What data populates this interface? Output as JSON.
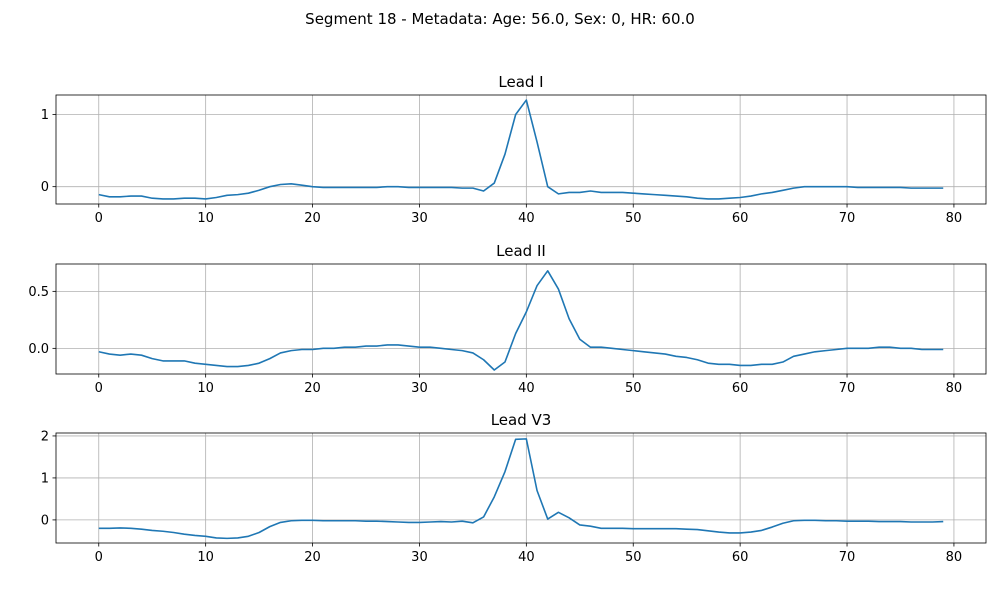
{
  "figure_title": "Segment 18 - Metadata: Age: 56.0, Sex: 0, HR: 60.0",
  "colors": {
    "line": "#1f77b4",
    "grid": "#b0b0b0",
    "axes": "#000000"
  },
  "chart_data": [
    {
      "type": "line",
      "title": "Lead I",
      "xlabel": "",
      "ylabel": "",
      "grid": true,
      "xlim": [
        -4,
        83
      ],
      "ylim": [
        -0.24,
        1.27
      ],
      "xticks": [
        "0",
        "10",
        "20",
        "30",
        "40",
        "50",
        "60",
        "70",
        "80"
      ],
      "yticks": [
        "0",
        "1"
      ],
      "series": [
        {
          "values": [
            -0.11,
            -0.14,
            -0.14,
            -0.13,
            -0.13,
            -0.16,
            -0.17,
            -0.17,
            -0.16,
            -0.16,
            -0.17,
            -0.15,
            -0.12,
            -0.11,
            -0.09,
            -0.05,
            0.0,
            0.03,
            0.04,
            0.02,
            0.0,
            -0.01,
            -0.01,
            -0.01,
            -0.01,
            -0.01,
            -0.01,
            0.0,
            0.0,
            -0.01,
            -0.01,
            -0.01,
            -0.01,
            -0.01,
            -0.02,
            -0.02,
            -0.06,
            0.05,
            0.45,
            1.0,
            1.2,
            0.62,
            0.0,
            -0.1,
            -0.08,
            -0.08,
            -0.06,
            -0.08,
            -0.08,
            -0.08,
            -0.09,
            -0.1,
            -0.11,
            -0.12,
            -0.13,
            -0.14,
            -0.16,
            -0.17,
            -0.17,
            -0.16,
            -0.15,
            -0.13,
            -0.1,
            -0.08,
            -0.05,
            -0.02,
            0.0,
            0.0,
            0.0,
            0.0,
            0.0,
            -0.01,
            -0.01,
            -0.01,
            -0.01,
            -0.01,
            -0.02,
            -0.02,
            -0.02,
            -0.02
          ]
        }
      ]
    },
    {
      "type": "line",
      "title": "Lead II",
      "xlabel": "",
      "ylabel": "",
      "grid": true,
      "xlim": [
        -4,
        83
      ],
      "ylim": [
        -0.225,
        0.74
      ],
      "xticks": [
        "0",
        "10",
        "20",
        "30",
        "40",
        "50",
        "60",
        "70",
        "80"
      ],
      "yticks": [
        "0.0",
        "0.5"
      ],
      "series": [
        {
          "values": [
            -0.03,
            -0.05,
            -0.06,
            -0.05,
            -0.06,
            -0.09,
            -0.11,
            -0.11,
            -0.11,
            -0.13,
            -0.14,
            -0.15,
            -0.16,
            -0.16,
            -0.15,
            -0.13,
            -0.09,
            -0.04,
            -0.02,
            -0.01,
            -0.01,
            0.0,
            0.0,
            0.01,
            0.01,
            0.02,
            0.02,
            0.03,
            0.03,
            0.02,
            0.01,
            0.01,
            0.0,
            -0.01,
            -0.02,
            -0.04,
            -0.1,
            -0.19,
            -0.12,
            0.13,
            0.32,
            0.55,
            0.68,
            0.52,
            0.26,
            0.08,
            0.01,
            0.01,
            0.0,
            -0.01,
            -0.02,
            -0.03,
            -0.04,
            -0.05,
            -0.07,
            -0.08,
            -0.1,
            -0.13,
            -0.14,
            -0.14,
            -0.15,
            -0.15,
            -0.14,
            -0.14,
            -0.12,
            -0.07,
            -0.05,
            -0.03,
            -0.02,
            -0.01,
            0.0,
            0.0,
            0.0,
            0.01,
            0.01,
            0.0,
            0.0,
            -0.01,
            -0.01,
            -0.01
          ]
        }
      ]
    },
    {
      "type": "line",
      "title": "Lead V3",
      "xlabel": "",
      "ylabel": "",
      "grid": true,
      "xlim": [
        -4,
        83
      ],
      "ylim": [
        -0.55,
        2.07
      ],
      "xticks": [
        "0",
        "10",
        "20",
        "30",
        "40",
        "50",
        "60",
        "70",
        "80"
      ],
      "yticks": [
        "0",
        "1",
        "2"
      ],
      "series": [
        {
          "values": [
            -0.2,
            -0.2,
            -0.19,
            -0.2,
            -0.22,
            -0.25,
            -0.27,
            -0.3,
            -0.34,
            -0.37,
            -0.39,
            -0.43,
            -0.44,
            -0.43,
            -0.39,
            -0.3,
            -0.16,
            -0.06,
            -0.02,
            -0.01,
            -0.01,
            -0.02,
            -0.02,
            -0.02,
            -0.02,
            -0.03,
            -0.03,
            -0.04,
            -0.05,
            -0.06,
            -0.06,
            -0.05,
            -0.04,
            -0.05,
            -0.03,
            -0.07,
            0.07,
            0.55,
            1.15,
            1.92,
            1.93,
            0.7,
            0.02,
            0.18,
            0.05,
            -0.12,
            -0.15,
            -0.2,
            -0.2,
            -0.2,
            -0.21,
            -0.21,
            -0.21,
            -0.21,
            -0.21,
            -0.22,
            -0.23,
            -0.26,
            -0.29,
            -0.31,
            -0.31,
            -0.29,
            -0.25,
            -0.17,
            -0.08,
            -0.02,
            -0.01,
            -0.01,
            -0.02,
            -0.02,
            -0.03,
            -0.03,
            -0.03,
            -0.04,
            -0.04,
            -0.04,
            -0.05,
            -0.05,
            -0.05,
            -0.04
          ]
        }
      ]
    }
  ]
}
